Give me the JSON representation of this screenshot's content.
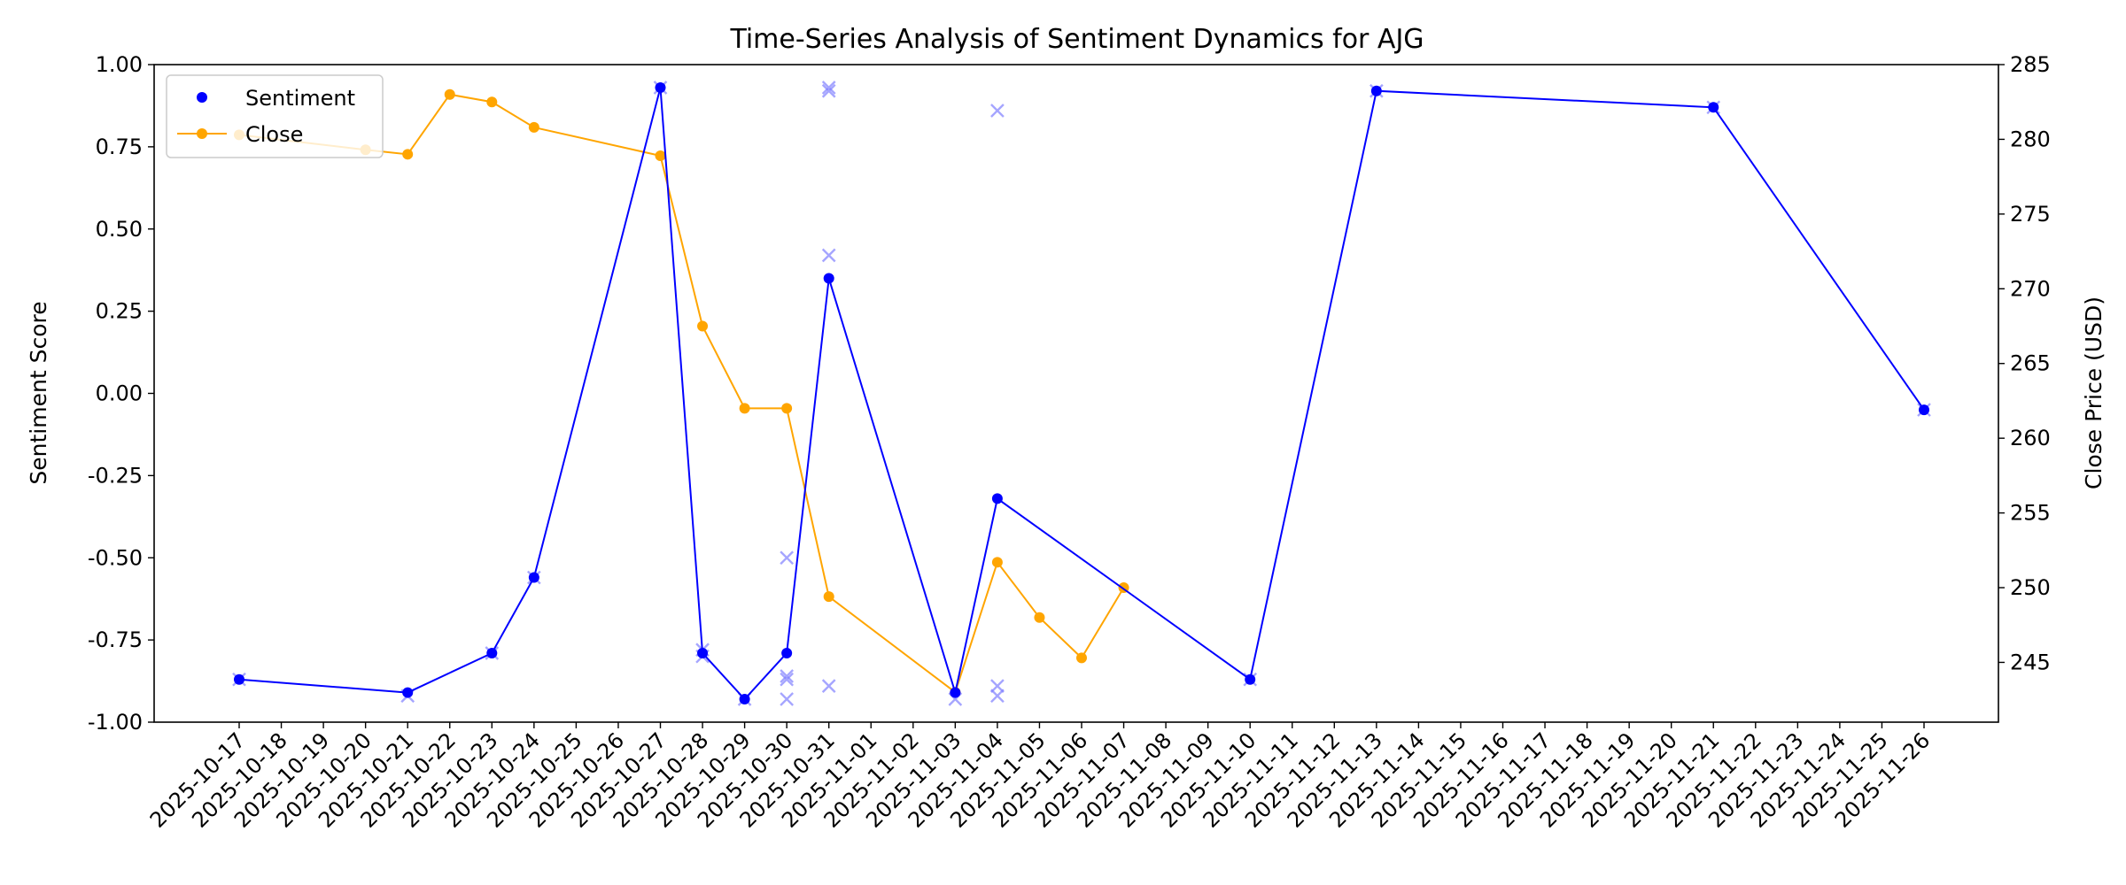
{
  "chart_data": {
    "type": "line",
    "title": "Time-Series Analysis of Sentiment Dynamics for AJG",
    "ylabel_left": "Sentiment Score",
    "ylabel_right": "Close Price (USD)",
    "x_categories": [
      "2025-10-17",
      "2025-10-18",
      "2025-10-19",
      "2025-10-20",
      "2025-10-21",
      "2025-10-22",
      "2025-10-23",
      "2025-10-24",
      "2025-10-25",
      "2025-10-26",
      "2025-10-27",
      "2025-10-28",
      "2025-10-29",
      "2025-10-30",
      "2025-10-31",
      "2025-11-01",
      "2025-11-02",
      "2025-11-03",
      "2025-11-04",
      "2025-11-05",
      "2025-11-06",
      "2025-11-07",
      "2025-11-08",
      "2025-11-09",
      "2025-11-10",
      "2025-11-11",
      "2025-11-12",
      "2025-11-13",
      "2025-11-14",
      "2025-11-15",
      "2025-11-16",
      "2025-11-17",
      "2025-11-18",
      "2025-11-19",
      "2025-11-20",
      "2025-11-21",
      "2025-11-22",
      "2025-11-23",
      "2025-11-24",
      "2025-11-25",
      "2025-11-26"
    ],
    "ylim_left": [
      -1.0,
      1.0
    ],
    "yticks_left": [
      "1.00",
      "0.75",
      "0.50",
      "0.25",
      "0.00",
      "-0.25",
      "-0.50",
      "-0.75",
      "-1.00"
    ],
    "ylim_right": [
      241.0,
      285.0
    ],
    "yticks_right": [
      "285",
      "280",
      "275",
      "270",
      "265",
      "260",
      "255",
      "250",
      "245"
    ],
    "legend": {
      "placement": "top-left",
      "entries": [
        "Sentiment",
        "Close"
      ]
    },
    "series": [
      {
        "name": "Sentiment",
        "color": "#0000ff",
        "points": [
          {
            "x": "2025-10-17",
            "y": -0.87
          },
          {
            "x": "2025-10-21",
            "y": -0.91
          },
          {
            "x": "2025-10-23",
            "y": -0.79
          },
          {
            "x": "2025-10-24",
            "y": -0.56
          },
          {
            "x": "2025-10-27",
            "y": 0.93
          },
          {
            "x": "2025-10-28",
            "y": -0.79
          },
          {
            "x": "2025-10-29",
            "y": -0.93
          },
          {
            "x": "2025-10-30",
            "y": -0.79
          },
          {
            "x": "2025-10-31",
            "y": 0.35
          },
          {
            "x": "2025-11-03",
            "y": -0.91
          },
          {
            "x": "2025-11-04",
            "y": -0.32
          },
          {
            "x": "2025-11-10",
            "y": -0.87
          },
          {
            "x": "2025-11-13",
            "y": 0.92
          },
          {
            "x": "2025-11-21",
            "y": 0.87
          },
          {
            "x": "2025-11-26",
            "y": -0.05
          }
        ]
      },
      {
        "name": "Close",
        "color": "#ffa500",
        "points": [
          {
            "x": "2025-10-17",
            "y": 280.3
          },
          {
            "x": "2025-10-20",
            "y": 279.3
          },
          {
            "x": "2025-10-21",
            "y": 279.0
          },
          {
            "x": "2025-10-22",
            "y": 283.0
          },
          {
            "x": "2025-10-23",
            "y": 282.5
          },
          {
            "x": "2025-10-24",
            "y": 280.8
          },
          {
            "x": "2025-10-27",
            "y": 278.9
          },
          {
            "x": "2025-10-28",
            "y": 267.5
          },
          {
            "x": "2025-10-29",
            "y": 262.0
          },
          {
            "x": "2025-10-30",
            "y": 262.0
          },
          {
            "x": "2025-10-31",
            "y": 249.4
          },
          {
            "x": "2025-11-03",
            "y": 243.0
          },
          {
            "x": "2025-11-04",
            "y": 251.7
          },
          {
            "x": "2025-11-05",
            "y": 248.0
          },
          {
            "x": "2025-11-06",
            "y": 245.3
          },
          {
            "x": "2025-11-07",
            "y": 250.0
          }
        ]
      }
    ],
    "raw_points": {
      "color": "#8080ff",
      "marker": "x",
      "points": [
        {
          "x": "2025-10-17",
          "y": -0.87
        },
        {
          "x": "2025-10-21",
          "y": -0.92
        },
        {
          "x": "2025-10-23",
          "y": -0.79
        },
        {
          "x": "2025-10-24",
          "y": -0.56
        },
        {
          "x": "2025-10-27",
          "y": 0.93
        },
        {
          "x": "2025-10-28",
          "y": -0.78
        },
        {
          "x": "2025-10-28",
          "y": -0.8
        },
        {
          "x": "2025-10-29",
          "y": -0.93
        },
        {
          "x": "2025-10-30",
          "y": -0.5
        },
        {
          "x": "2025-10-30",
          "y": -0.86
        },
        {
          "x": "2025-10-30",
          "y": -0.87
        },
        {
          "x": "2025-10-30",
          "y": -0.93
        },
        {
          "x": "2025-10-31",
          "y": 0.93
        },
        {
          "x": "2025-10-31",
          "y": 0.92
        },
        {
          "x": "2025-10-31",
          "y": 0.42
        },
        {
          "x": "2025-10-31",
          "y": -0.89
        },
        {
          "x": "2025-11-03",
          "y": -0.93
        },
        {
          "x": "2025-11-04",
          "y": 0.86
        },
        {
          "x": "2025-11-04",
          "y": -0.89
        },
        {
          "x": "2025-11-04",
          "y": -0.92
        },
        {
          "x": "2025-11-10",
          "y": -0.87
        },
        {
          "x": "2025-11-13",
          "y": 0.92
        },
        {
          "x": "2025-11-21",
          "y": 0.87
        },
        {
          "x": "2025-11-26",
          "y": -0.05
        }
      ]
    }
  }
}
